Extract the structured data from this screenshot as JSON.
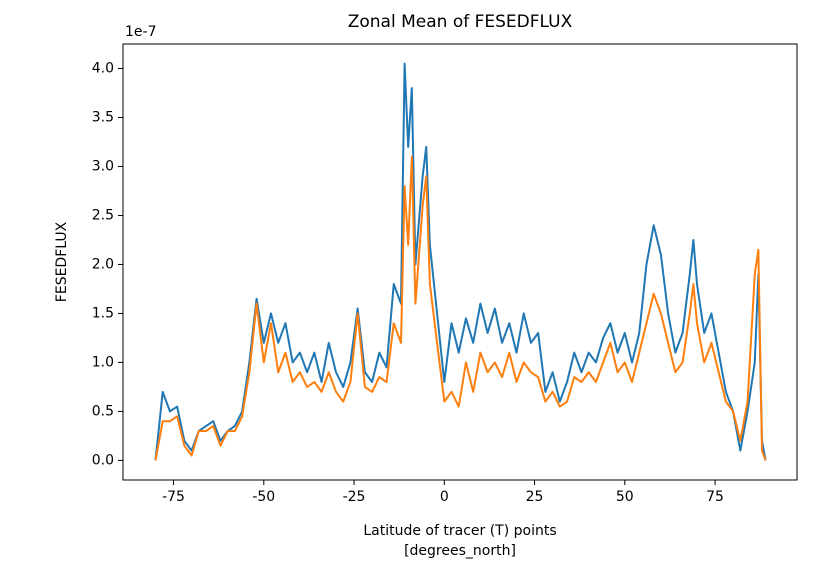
{
  "chart_data": {
    "type": "line",
    "title": "Zonal Mean of FESEDFLUX",
    "ylabel": "FESEDFLUX",
    "xlabel": [
      "Latitude of tracer (T) points",
      "[degrees_north]"
    ],
    "y_offset_label": "1e-7",
    "x": [
      -80,
      -78,
      -76,
      -74,
      -72,
      -70,
      -68,
      -66,
      -64,
      -62,
      -60,
      -58,
      -56,
      -54,
      -52,
      -50,
      -48,
      -46,
      -44,
      -42,
      -40,
      -38,
      -36,
      -34,
      -32,
      -30,
      -28,
      -26,
      -24,
      -22,
      -20,
      -18,
      -16,
      -14,
      -12,
      -11,
      -10,
      -9,
      -8,
      -6,
      -5,
      -4,
      -2,
      0,
      2,
      4,
      6,
      8,
      10,
      12,
      14,
      16,
      18,
      20,
      22,
      24,
      26,
      28,
      30,
      32,
      34,
      36,
      38,
      40,
      42,
      44,
      46,
      48,
      50,
      52,
      54,
      56,
      58,
      60,
      62,
      64,
      66,
      68,
      69,
      70,
      72,
      74,
      76,
      78,
      80,
      82,
      84,
      86,
      87,
      88,
      89
    ],
    "series": [
      {
        "color": "#1f77b4",
        "values": [
          0.0,
          0.7,
          0.5,
          0.55,
          0.2,
          0.1,
          0.3,
          0.35,
          0.4,
          0.2,
          0.3,
          0.35,
          0.5,
          1.0,
          1.65,
          1.2,
          1.5,
          1.2,
          1.4,
          1.0,
          1.1,
          0.9,
          1.1,
          0.8,
          1.2,
          0.9,
          0.75,
          1.0,
          1.55,
          0.9,
          0.8,
          1.1,
          0.95,
          1.8,
          1.6,
          4.05,
          3.2,
          3.8,
          2.0,
          2.9,
          3.2,
          2.2,
          1.5,
          0.8,
          1.4,
          1.1,
          1.45,
          1.2,
          1.6,
          1.3,
          1.55,
          1.2,
          1.4,
          1.1,
          1.5,
          1.2,
          1.3,
          0.7,
          0.9,
          0.6,
          0.8,
          1.1,
          0.9,
          1.1,
          1.0,
          1.25,
          1.4,
          1.1,
          1.3,
          1.0,
          1.3,
          2.0,
          2.4,
          2.1,
          1.5,
          1.1,
          1.3,
          1.9,
          2.25,
          1.8,
          1.3,
          1.5,
          1.1,
          0.7,
          0.5,
          0.1,
          0.5,
          1.0,
          1.9,
          0.2,
          0.0
        ]
      },
      {
        "color": "#ff7f0e",
        "values": [
          0.0,
          0.4,
          0.4,
          0.45,
          0.15,
          0.05,
          0.3,
          0.3,
          0.35,
          0.15,
          0.3,
          0.3,
          0.45,
          0.9,
          1.6,
          1.0,
          1.4,
          0.9,
          1.1,
          0.8,
          0.9,
          0.75,
          0.8,
          0.7,
          0.9,
          0.7,
          0.6,
          0.8,
          1.5,
          0.75,
          0.7,
          0.85,
          0.8,
          1.4,
          1.2,
          2.8,
          2.2,
          3.1,
          1.6,
          2.6,
          2.9,
          1.8,
          1.2,
          0.6,
          0.7,
          0.55,
          1.0,
          0.7,
          1.1,
          0.9,
          1.0,
          0.85,
          1.1,
          0.8,
          1.0,
          0.9,
          0.85,
          0.6,
          0.7,
          0.55,
          0.6,
          0.85,
          0.8,
          0.9,
          0.8,
          1.0,
          1.2,
          0.9,
          1.0,
          0.8,
          1.1,
          1.4,
          1.7,
          1.5,
          1.2,
          0.9,
          1.0,
          1.5,
          1.8,
          1.4,
          1.0,
          1.2,
          0.9,
          0.6,
          0.5,
          0.2,
          0.6,
          1.9,
          2.15,
          0.1,
          0.0
        ]
      }
    ],
    "xlim": [
      -89,
      97.7
    ],
    "ylim": [
      -0.2,
      4.25
    ],
    "xticks": [
      -75,
      -50,
      -25,
      0,
      25,
      50,
      75
    ],
    "yticks": [
      {
        "value": 0,
        "label": "0.0"
      },
      0.5,
      {
        "value": 1,
        "label": "1.0"
      },
      1.5,
      {
        "value": 2,
        "label": "2.0"
      },
      2.5,
      {
        "value": 3,
        "label": "3.0"
      },
      3.5,
      {
        "value": 4,
        "label": "4.0"
      }
    ],
    "grid": false
  }
}
